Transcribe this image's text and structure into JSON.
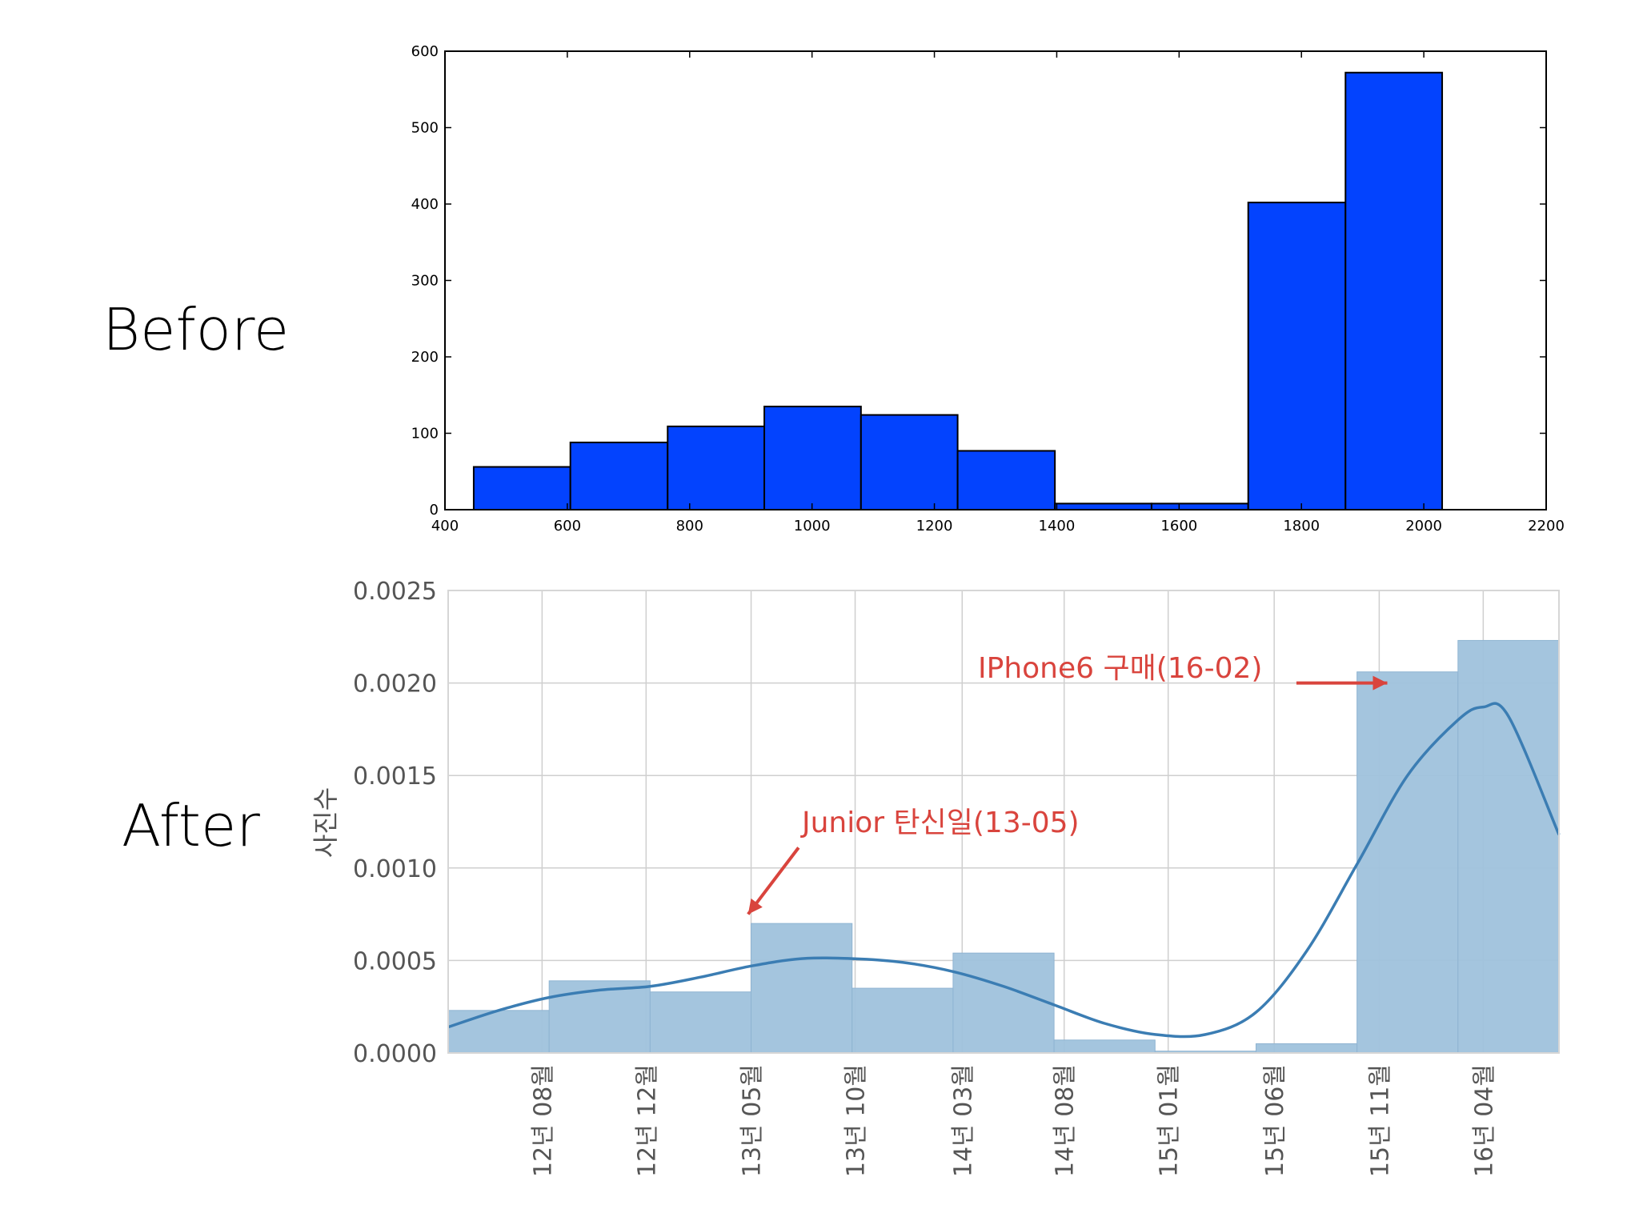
{
  "panel_labels": {
    "before": "Before",
    "after": "After"
  },
  "colors": {
    "before_bar": "#0343fe",
    "after_bar": "#9fc2dc",
    "after_line": "#3b7db3",
    "annotation": "#d9443d",
    "grid": "#cfcfcf"
  },
  "chart_data": [
    {
      "type": "bar",
      "subtype": "histogram",
      "title": "",
      "xlabel": "",
      "ylabel": "",
      "bin_edges": [
        447,
        605,
        764,
        922,
        1080,
        1238,
        1397,
        1555,
        1713,
        1872,
        2030
      ],
      "values": [
        56,
        88,
        109,
        135,
        124,
        77,
        8,
        8,
        402,
        572
      ],
      "xlim": [
        400,
        2200
      ],
      "ylim": [
        0,
        600
      ],
      "xticks": [
        "400",
        "600",
        "800",
        "1000",
        "1200",
        "1400",
        "1600",
        "1800",
        "2000",
        "2200"
      ],
      "yticks": [
        "0",
        "100",
        "200",
        "300",
        "400",
        "500",
        "600"
      ],
      "grid": false
    },
    {
      "type": "bar",
      "subtype": "histogram with density curve",
      "title": "",
      "xlabel": "",
      "ylabel": "사진수",
      "bin_index": [
        0,
        1,
        2,
        3,
        4,
        5,
        6,
        7,
        8,
        9,
        10
      ],
      "values": [
        0.00023,
        0.00039,
        0.00033,
        0.0007,
        0.00035,
        0.00054,
        7e-05,
        1e-05,
        5e-05,
        0.00206,
        0.00223
      ],
      "xlim": [
        0,
        11
      ],
      "ylim": [
        0,
        0.0025
      ],
      "xticks": [
        {
          "pos": 0.93,
          "label": "12년 08월"
        },
        {
          "pos": 1.96,
          "label": "12년 12월"
        },
        {
          "pos": 3.0,
          "label": "13년 05월"
        },
        {
          "pos": 4.03,
          "label": "13년 10월"
        },
        {
          "pos": 5.09,
          "label": "14년 03월"
        },
        {
          "pos": 6.1,
          "label": "14년 08월"
        },
        {
          "pos": 7.13,
          "label": "15년 01월"
        },
        {
          "pos": 8.18,
          "label": "15년 06월"
        },
        {
          "pos": 9.22,
          "label": "15년 11월"
        },
        {
          "pos": 10.25,
          "label": "16년 04월"
        }
      ],
      "yticks": [
        "0.0000",
        "0.0005",
        "0.0010",
        "0.0015",
        "0.0020",
        "0.0025"
      ],
      "density_curve": {
        "x": [
          0,
          0.5,
          1.0,
          1.5,
          2.0,
          2.5,
          3.0,
          3.5,
          4.0,
          4.5,
          5.0,
          5.5,
          6.0,
          6.5,
          7.0,
          7.5,
          8.0,
          8.5,
          9.0,
          9.5,
          10.0,
          10.25,
          10.5,
          11.0
        ],
        "y": [
          0.00014,
          0.00023,
          0.0003,
          0.00034,
          0.00036,
          0.00041,
          0.00047,
          0.00051,
          0.00051,
          0.00049,
          0.00044,
          0.00036,
          0.00026,
          0.00016,
          0.0001,
          0.0001,
          0.00022,
          0.00055,
          0.00102,
          0.0015,
          0.0018,
          0.00187,
          0.00182,
          0.00118
        ]
      },
      "annotations": [
        {
          "text": "Junior 탄신일(13-05)",
          "x_from": 3.47,
          "y_from": 0.00111,
          "x_to": 2.97,
          "y_to": 0.00075
        },
        {
          "text": "IPhone6 구매(16-02)",
          "x_from": 8.4,
          "y_from": 0.002,
          "x_to": 9.3,
          "y_to": 0.002
        }
      ],
      "grid": true
    }
  ]
}
